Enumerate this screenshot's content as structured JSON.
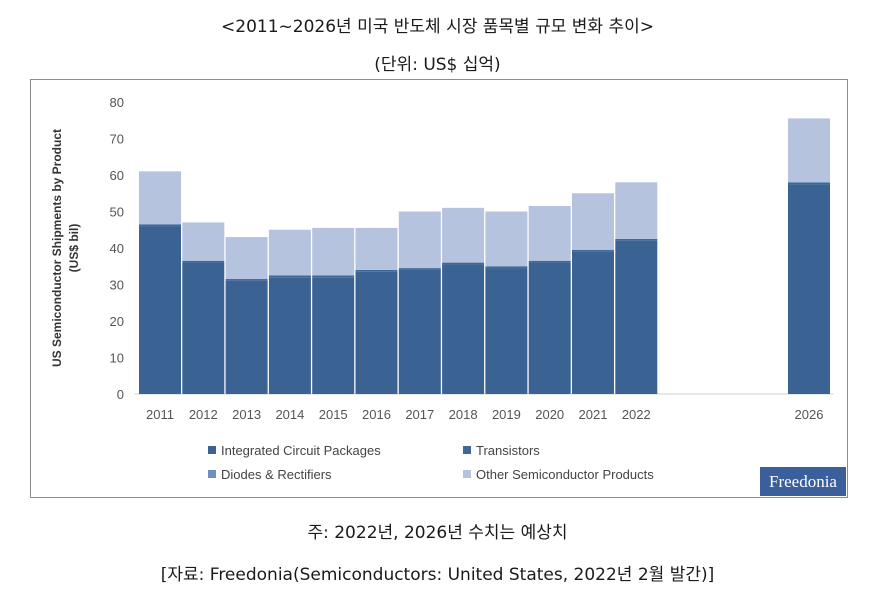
{
  "header": {
    "title": "<2011~2026년 미국 반도체 시장 품목별 규모 변화 추이>",
    "unit": "(단위: US$ 십억)"
  },
  "footer": {
    "note": "주: 2022년, 2026년 수치는 예상치",
    "source": "[자료: Freedonia(Semiconductors: United States, 2022년 2월 발간)]"
  },
  "logo": {
    "text": "Freedonia"
  },
  "colors": {
    "integrated": "#3a6292",
    "transistors": "#3e679a",
    "diodes": "#6f8fbf",
    "other": "#b5c3de"
  },
  "chart_data": {
    "type": "bar",
    "stacked": true,
    "categories": [
      "2011",
      "2012",
      "2013",
      "2014",
      "2015",
      "2016",
      "2017",
      "2018",
      "2019",
      "2020",
      "2021",
      "2022",
      "2026"
    ],
    "ylabel": "US Semiconductor Shipments by Product (US$ bil)",
    "ylim": [
      0,
      80
    ],
    "yticks": [
      0,
      10,
      20,
      30,
      40,
      50,
      60,
      70,
      80
    ],
    "series": [
      {
        "name": "Integrated Circuit Packages",
        "values": [
          46,
          36,
          31,
          32,
          32,
          33.5,
          34,
          35.5,
          34.5,
          36,
          39,
          42,
          57.5
        ]
      },
      {
        "name": "Transistors",
        "values": [
          0.5,
          0.5,
          0.5,
          0.5,
          0.5,
          0.5,
          0.5,
          0.5,
          0.5,
          0.5,
          0.5,
          0.5,
          0.5
        ]
      },
      {
        "name": "Diodes & Rectifiers",
        "values": [
          0,
          0,
          0,
          0,
          0,
          0,
          0,
          0,
          0,
          0,
          0,
          0,
          0
        ]
      },
      {
        "name": "Other Semiconductor Products",
        "values": [
          14.5,
          10.5,
          11.5,
          12.5,
          13,
          11.5,
          15.5,
          15,
          15,
          15,
          15.5,
          15.5,
          17.5
        ]
      }
    ],
    "legend_position": "bottom",
    "grid": false
  }
}
